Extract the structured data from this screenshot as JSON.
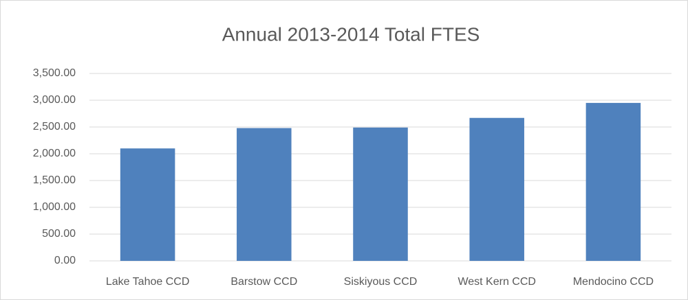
{
  "chart_data": {
    "type": "bar",
    "title": "Annual 2013-2014 Total FTES",
    "categories": [
      "Lake Tahoe CCD",
      "Barstow CCD",
      "Siskiyous CCD",
      "West Kern CCD",
      "Mendocino CCD"
    ],
    "values": [
      2100,
      2480,
      2490,
      2670,
      2950
    ],
    "color": "#4f81bd",
    "ylim": [
      0,
      3500
    ],
    "yticks": [
      {
        "value": 0,
        "label": "0.00"
      },
      {
        "value": 500,
        "label": "500.00"
      },
      {
        "value": 1000,
        "label": "1,000.00"
      },
      {
        "value": 1500,
        "label": "1,500.00"
      },
      {
        "value": 2000,
        "label": "2,000.00"
      },
      {
        "value": 2500,
        "label": "2,500.00"
      },
      {
        "value": 3000,
        "label": "3,000.00"
      },
      {
        "value": 3500,
        "label": "3,500.00"
      }
    ],
    "grid": true
  }
}
